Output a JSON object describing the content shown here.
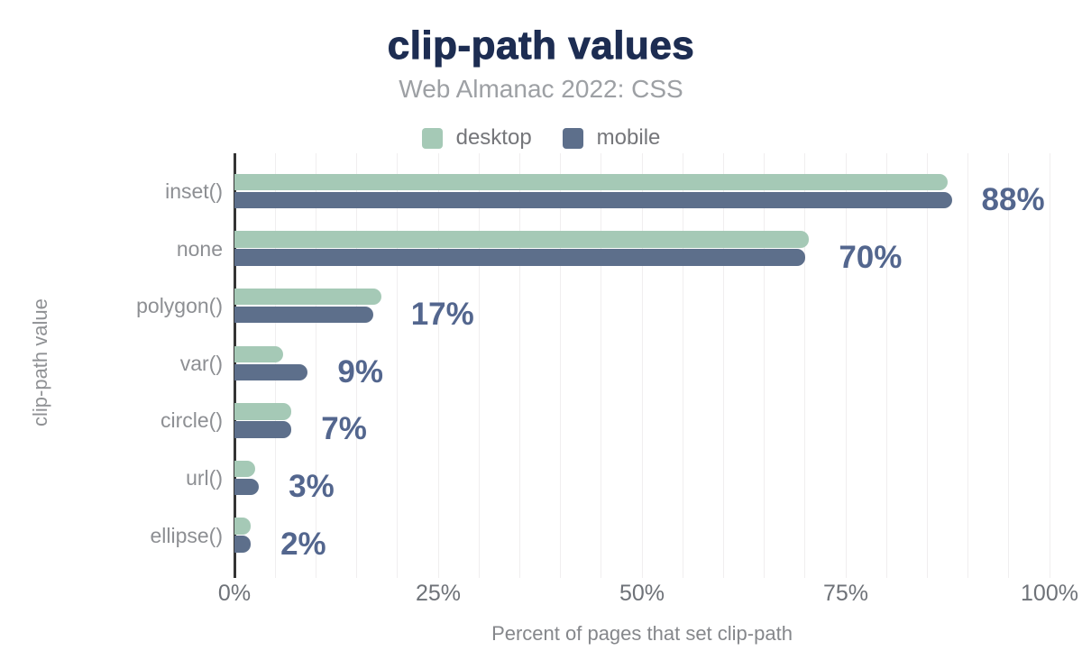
{
  "chart": {
    "title": "clip-path values",
    "subtitle": "Web Almanac 2022: CSS"
  },
  "chart_data": {
    "type": "bar",
    "orientation": "horizontal",
    "title": "clip-path values",
    "subtitle": "Web Almanac 2022: CSS",
    "categories": [
      "inset()",
      "none",
      "polygon()",
      "var()",
      "circle()",
      "url()",
      "ellipse()"
    ],
    "series": [
      {
        "name": "desktop",
        "color": "#a5c9b6",
        "values": [
          87.5,
          70.5,
          18,
          6,
          7,
          2.5,
          2
        ]
      },
      {
        "name": "mobile",
        "color": "#5d6f8b",
        "values": [
          88,
          70,
          17,
          9,
          7,
          3,
          2
        ]
      }
    ],
    "value_labels": [
      "88%",
      "70%",
      "17%",
      "9%",
      "7%",
      "3%",
      "2%"
    ],
    "value_labels_refer_to": "mobile",
    "xlabel": "Percent of pages that set clip-path",
    "ylabel": "clip-path value",
    "xlim": [
      0,
      100
    ],
    "xticks": [
      0,
      25,
      50,
      75,
      100
    ],
    "xtick_labels": [
      "0%",
      "25%",
      "50%",
      "75%",
      "100%"
    ],
    "grid": "vertical gridlines every 5%",
    "legend_position": "top center"
  },
  "colors": {
    "title": "#1d2d52",
    "subtitle": "#9da0a4",
    "desktop_bar": "#a5c9b6",
    "mobile_bar": "#5d6f8b",
    "value_label": "#53668e",
    "gridline": "#f0eeef",
    "axis_line": "#343434",
    "category_label": "#8d8f93",
    "tick_label": "#6e7278"
  }
}
